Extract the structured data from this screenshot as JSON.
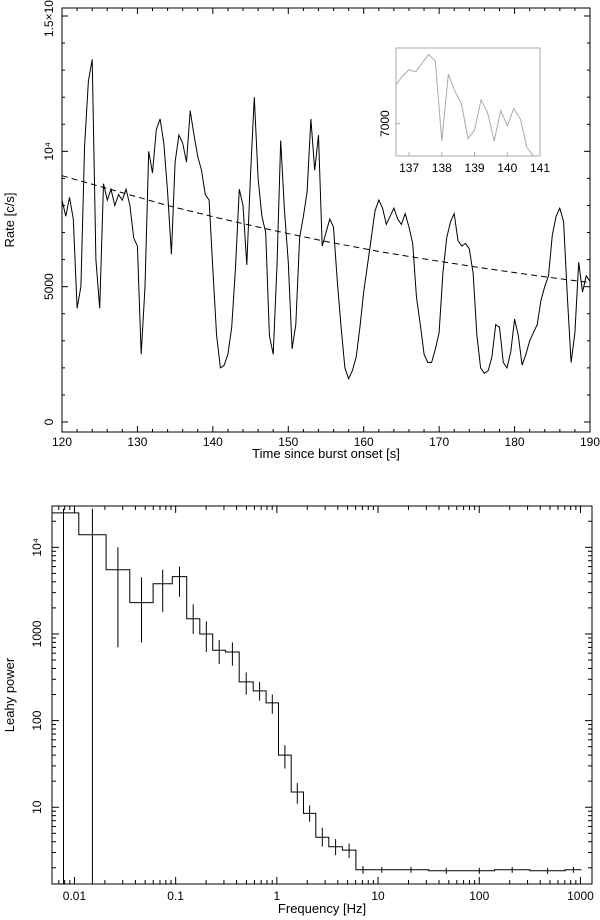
{
  "chart_data": [
    {
      "type": "line",
      "xlabel": "Time since burst onset [s]",
      "ylabel": "Rate [c/s]",
      "xlim": [
        120,
        190
      ],
      "ylim": [
        0,
        15000
      ],
      "xticks": [
        120,
        130,
        140,
        150,
        160,
        170,
        180,
        190
      ],
      "yticks": [
        0,
        5000,
        10000,
        15000
      ],
      "ytick_labels": [
        "0",
        "5000",
        "10⁴",
        "1.5×10⁴"
      ],
      "series": [
        {
          "style": "solid",
          "color": "#000000",
          "x": [
            120.0,
            120.5,
            121.0,
            121.5,
            122.0,
            122.5,
            123.0,
            123.5,
            124.0,
            124.5,
            125.0,
            125.5,
            126.0,
            126.5,
            127.0,
            127.5,
            128.0,
            128.5,
            129.0,
            129.5,
            130.0,
            130.5,
            131.0,
            131.5,
            132.0,
            132.5,
            133.0,
            133.5,
            134.0,
            134.5,
            135.0,
            135.5,
            136.0,
            136.5,
            137.0,
            137.5,
            138.0,
            138.5,
            139.0,
            139.5,
            140.0,
            140.5,
            141.0,
            141.5,
            142.0,
            142.5,
            143.0,
            143.5,
            144.0,
            144.5,
            145.0,
            145.5,
            146.0,
            146.5,
            147.0,
            147.5,
            148.0,
            148.5,
            149.0,
            149.5,
            150.0,
            150.5,
            151.0,
            151.5,
            152.0,
            152.5,
            153.0,
            153.5,
            154.0,
            154.5,
            155.0,
            155.5,
            156.0,
            156.5,
            157.0,
            157.5,
            158.0,
            158.5,
            159.0,
            159.5,
            160.0,
            160.5,
            161.0,
            161.5,
            162.0,
            162.5,
            163.0,
            163.5,
            164.0,
            164.5,
            165.0,
            165.5,
            166.0,
            166.5,
            167.0,
            167.5,
            168.0,
            168.5,
            169.0,
            169.5,
            170.0,
            170.5,
            171.0,
            171.5,
            172.0,
            172.5,
            173.0,
            173.5,
            174.0,
            174.5,
            175.0,
            175.5,
            176.0,
            176.5,
            177.0,
            177.5,
            178.0,
            178.5,
            179.0,
            179.5,
            180.0,
            180.5,
            181.0,
            181.5,
            182.0,
            182.5,
            183.0,
            183.5,
            184.0,
            184.5,
            185.0,
            185.5,
            186.0,
            186.5,
            187.0,
            187.5,
            188.0,
            188.5,
            189.0,
            189.5,
            190.0
          ],
          "values": [
            8200,
            7600,
            8300,
            7500,
            4200,
            5000,
            10200,
            12600,
            13400,
            6000,
            4200,
            8800,
            8200,
            8600,
            8000,
            8400,
            8200,
            8600,
            8000,
            6800,
            6500,
            2500,
            5000,
            10000,
            9200,
            10800,
            11200,
            10300,
            8500,
            6200,
            9600,
            10600,
            10300,
            9600,
            11500,
            10600,
            9800,
            9300,
            8400,
            8200,
            5600,
            3200,
            2000,
            2100,
            2500,
            3500,
            5700,
            8600,
            8000,
            5800,
            9200,
            12000,
            9000,
            7600,
            7000,
            3200,
            2500,
            5800,
            10400,
            7800,
            5900,
            2700,
            3600,
            6800,
            7600,
            8500,
            11200,
            9300,
            10600,
            6500,
            7000,
            7500,
            7200,
            5200,
            3500,
            2000,
            1600,
            1900,
            2400,
            3500,
            4800,
            5800,
            6800,
            7800,
            8200,
            7900,
            7300,
            7600,
            7900,
            7500,
            7300,
            7700,
            7200,
            6600,
            4600,
            3600,
            2500,
            2200,
            2200,
            2700,
            3300,
            5500,
            6800,
            7400,
            7700,
            6700,
            6500,
            6600,
            6400,
            5500,
            3200,
            2000,
            1800,
            1900,
            2400,
            3600,
            3500,
            2200,
            2000,
            2600,
            3800,
            3200,
            2100,
            2500,
            3000,
            3300,
            3600,
            4500,
            5000,
            5400,
            6900,
            7600,
            7900,
            7400,
            4600,
            2200,
            3300,
            5900,
            4800,
            5400,
            5200
          ]
        },
        {
          "style": "dashed",
          "color": "#000000",
          "x": [
            120,
            127,
            134,
            141,
            148,
            155,
            162,
            169,
            176,
            183,
            190
          ],
          "values": [
            9100,
            8550,
            8000,
            7520,
            7080,
            6670,
            6300,
            5980,
            5680,
            5400,
            5150
          ]
        }
      ]
    },
    {
      "type": "line",
      "role": "inset",
      "xlim": [
        136.6,
        141
      ],
      "ylim": [
        5500,
        10500
      ],
      "xticks": [
        137,
        138,
        139,
        140,
        141
      ],
      "yticks": [
        7000
      ],
      "ytick_labels": [
        "7000"
      ],
      "series": [
        {
          "style": "solid",
          "color": "#aaaaaa",
          "x": [
            136.6,
            136.8,
            137.0,
            137.2,
            137.4,
            137.6,
            137.8,
            138.0,
            138.2,
            138.4,
            138.6,
            138.8,
            139.0,
            139.2,
            139.4,
            139.6,
            139.8,
            140.0,
            140.2,
            140.4,
            140.6,
            140.8,
            141.0
          ],
          "values": [
            8800,
            9200,
            9500,
            9400,
            9800,
            10200,
            9900,
            6200,
            9300,
            8500,
            7900,
            6300,
            6700,
            8100,
            7500,
            6200,
            7600,
            6900,
            7700,
            7200,
            5900,
            5500,
            5500
          ]
        }
      ]
    },
    {
      "type": "line",
      "xlabel": "Frequency [Hz]",
      "ylabel": "Leahy power",
      "xscale": "log",
      "yscale": "log",
      "xlim": [
        0.006,
        1300
      ],
      "ylim": [
        1.3,
        30000
      ],
      "xticks": [
        0.01,
        0.1,
        1,
        10,
        100,
        1000
      ],
      "xtick_labels": [
        "0.01",
        "0.1",
        "1",
        "10",
        "100",
        "1000"
      ],
      "yticks": [
        10,
        100,
        1000,
        10000
      ],
      "ytick_labels": [
        "10",
        "100",
        "1000",
        "10⁴"
      ],
      "series": [
        {
          "style": "step",
          "color": "#000000",
          "x": [
            0.0078,
            0.0156,
            0.027,
            0.046,
            0.078,
            0.11,
            0.15,
            0.2,
            0.27,
            0.36,
            0.5,
            0.68,
            0.9,
            1.2,
            1.6,
            2.1,
            2.8,
            3.8,
            5.2,
            7,
            10,
            20,
            50,
            100,
            200,
            500,
            1000
          ],
          "values": [
            25000,
            14000,
            5500,
            2300,
            3800,
            4600,
            1500,
            1000,
            650,
            620,
            280,
            220,
            160,
            40,
            15,
            8.5,
            4.5,
            3.5,
            3.2,
            1.9,
            1.9,
            1.9,
            1.85,
            1.85,
            1.9,
            1.85,
            1.9
          ],
          "err_low": [
            1.3,
            1.3,
            700,
            800,
            1800,
            2700,
            1000,
            620,
            450,
            430,
            200,
            170,
            120,
            28,
            11,
            6.8,
            3.5,
            2.8,
            2.6,
            1.7,
            1.75,
            1.75,
            1.7,
            1.7,
            1.75,
            1.7,
            1.75
          ],
          "err_high": [
            28000,
            28000,
            10000,
            4500,
            5500,
            6000,
            2200,
            1400,
            850,
            800,
            360,
            280,
            200,
            52,
            19,
            10.5,
            5.8,
            4.3,
            3.8,
            2.1,
            2.05,
            2.05,
            2.0,
            2.0,
            2.05,
            2.0,
            2.05
          ]
        }
      ]
    }
  ]
}
